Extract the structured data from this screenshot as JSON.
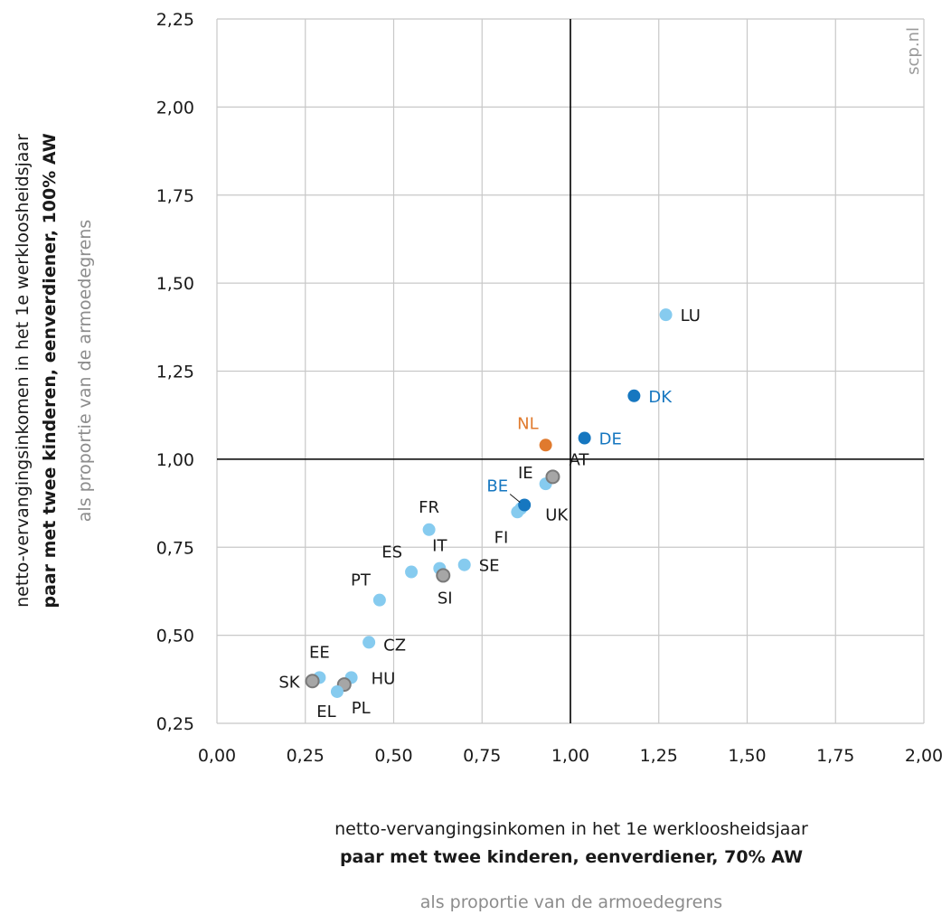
{
  "chart_data": {
    "type": "scatter",
    "xlim": [
      0,
      2
    ],
    "ylim": [
      0.25,
      2.25
    ],
    "x_ticks": [
      "0,00",
      "0,25",
      "0,50",
      "0,75",
      "1,00",
      "1,25",
      "1,50",
      "1,75",
      "2,00"
    ],
    "y_ticks": [
      "0,25",
      "0,50",
      "0,75",
      "1,00",
      "1,25",
      "1,50",
      "1,75",
      "2,00",
      "2,25"
    ],
    "x_tick_values": [
      0,
      0.25,
      0.5,
      0.75,
      1,
      1.25,
      1.5,
      1.75,
      2
    ],
    "y_tick_values": [
      0.25,
      0.5,
      0.75,
      1,
      1.25,
      1.5,
      1.75,
      2,
      2.25
    ],
    "grid": true,
    "reference_lines": {
      "x": 1.0,
      "y": 1.0
    },
    "xlabel": {
      "line1": "netto-vervangingsinkomen in het 1e werkloosheidsjaar",
      "line2": "paar met twee kinderen, eenverdiener, 70% AW",
      "line3": "als proportie van de armoedegrens"
    },
    "ylabel": {
      "line1": "netto-vervangingsinkomen in het 1e werkloosheidsjaar",
      "line2": "paar met twee kinderen, eenverdiener, 100% AW",
      "line3": "als proportie van de armoedegrens"
    },
    "watermark": "scp.nl",
    "colors": {
      "light": "#86cbef",
      "dark": "#1677c0",
      "nl": "#e07a2e",
      "grey": "#a6a6a6",
      "grid": "#c8c8c8",
      "axis": "#000000",
      "label_default": "#1a1a1a"
    },
    "points": [
      {
        "label": "LU",
        "x": 1.27,
        "y": 1.41,
        "style": "light"
      },
      {
        "label": "DK",
        "x": 1.18,
        "y": 1.18,
        "style": "dark"
      },
      {
        "label": "DE",
        "x": 1.04,
        "y": 1.06,
        "style": "dark"
      },
      {
        "label": "NL",
        "x": 0.93,
        "y": 1.04,
        "style": "nl"
      },
      {
        "label": "IE",
        "x": 0.93,
        "y": 0.93,
        "style": "light"
      },
      {
        "label": "AT",
        "x": 0.95,
        "y": 0.95,
        "style": "grey"
      },
      {
        "label": "UK",
        "x": 0.86,
        "y": 0.86,
        "style": "light"
      },
      {
        "label": "FI",
        "x": 0.85,
        "y": 0.85,
        "style": "light"
      },
      {
        "label": "BE",
        "x": 0.87,
        "y": 0.87,
        "style": "dark"
      },
      {
        "label": "FR",
        "x": 0.6,
        "y": 0.8,
        "style": "light"
      },
      {
        "label": "SE",
        "x": 0.7,
        "y": 0.7,
        "style": "light"
      },
      {
        "label": "IT",
        "x": 0.63,
        "y": 0.69,
        "style": "light"
      },
      {
        "label": "ES",
        "x": 0.55,
        "y": 0.68,
        "style": "light"
      },
      {
        "label": "SI",
        "x": 0.64,
        "y": 0.67,
        "style": "grey"
      },
      {
        "label": "PT",
        "x": 0.46,
        "y": 0.6,
        "style": "light"
      },
      {
        "label": "CZ",
        "x": 0.43,
        "y": 0.48,
        "style": "light"
      },
      {
        "label": "EE",
        "x": 0.29,
        "y": 0.38,
        "style": "light"
      },
      {
        "label": "HU",
        "x": 0.38,
        "y": 0.38,
        "style": "light"
      },
      {
        "label": "SK",
        "x": 0.27,
        "y": 0.37,
        "style": "grey"
      },
      {
        "label": "PL",
        "x": 0.36,
        "y": 0.36,
        "style": "grey"
      },
      {
        "label": "EL",
        "x": 0.34,
        "y": 0.34,
        "style": "light"
      }
    ]
  }
}
